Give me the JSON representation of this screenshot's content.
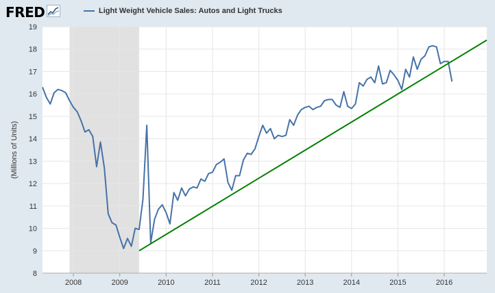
{
  "logo": {
    "text": "FRED",
    "icon": "fred-mini-chart-icon"
  },
  "colors": {
    "background": "#e1e9f0",
    "plot_background": "#ffffff",
    "series": "#4572a7",
    "trend": "#008000",
    "recession": "#e1e1e1",
    "grid": "#e6e6e6"
  },
  "chart_data": {
    "type": "line",
    "title": "",
    "legend": {
      "position": "top-left",
      "entries": [
        "Light Weight Vehicle Sales: Autos and Light Trucks"
      ]
    },
    "xlabel": "",
    "ylabel": "(Millions of Units)",
    "ylim": [
      8,
      19
    ],
    "xlim": [
      "2007-05-01",
      "2016-12-01"
    ],
    "yticks": [
      8,
      9,
      10,
      11,
      12,
      13,
      14,
      15,
      16,
      17,
      18,
      19
    ],
    "xticks": [
      "2008",
      "2009",
      "2010",
      "2011",
      "2012",
      "2013",
      "2014",
      "2015",
      "2016"
    ],
    "grid": true,
    "recession_shading": [
      {
        "start": "2007-12-01",
        "end": "2009-06-01"
      }
    ],
    "series": [
      {
        "name": "Light Weight Vehicle Sales: Autos and Light Trucks",
        "dates": [
          "2007-05",
          "2007-06",
          "2007-07",
          "2007-08",
          "2007-09",
          "2007-10",
          "2007-11",
          "2007-12",
          "2008-01",
          "2008-02",
          "2008-03",
          "2008-04",
          "2008-05",
          "2008-06",
          "2008-07",
          "2008-08",
          "2008-09",
          "2008-10",
          "2008-11",
          "2008-12",
          "2009-01",
          "2009-02",
          "2009-03",
          "2009-04",
          "2009-05",
          "2009-06",
          "2009-07",
          "2009-08",
          "2009-09",
          "2009-10",
          "2009-11",
          "2009-12",
          "2010-01",
          "2010-02",
          "2010-03",
          "2010-04",
          "2010-05",
          "2010-06",
          "2010-07",
          "2010-08",
          "2010-09",
          "2010-10",
          "2010-11",
          "2010-12",
          "2011-01",
          "2011-02",
          "2011-03",
          "2011-04",
          "2011-05",
          "2011-06",
          "2011-07",
          "2011-08",
          "2011-09",
          "2011-10",
          "2011-11",
          "2011-12",
          "2012-01",
          "2012-02",
          "2012-03",
          "2012-04",
          "2012-05",
          "2012-06",
          "2012-07",
          "2012-08",
          "2012-09",
          "2012-10",
          "2012-11",
          "2012-12",
          "2013-01",
          "2013-02",
          "2013-03",
          "2013-04",
          "2013-05",
          "2013-06",
          "2013-07",
          "2013-08",
          "2013-09",
          "2013-10",
          "2013-11",
          "2013-12",
          "2014-01",
          "2014-02",
          "2014-03",
          "2014-04",
          "2014-05",
          "2014-06",
          "2014-07",
          "2014-08",
          "2014-09",
          "2014-10",
          "2014-11",
          "2014-12",
          "2015-01",
          "2015-02",
          "2015-03",
          "2015-04",
          "2015-05",
          "2015-06",
          "2015-07",
          "2015-08",
          "2015-09",
          "2015-10",
          "2015-11",
          "2015-12",
          "2016-01",
          "2016-02",
          "2016-03"
        ],
        "values": [
          16.3,
          15.85,
          15.55,
          16.05,
          16.2,
          16.15,
          16.05,
          15.7,
          15.4,
          15.2,
          14.8,
          14.3,
          14.4,
          14.1,
          12.75,
          13.85,
          12.7,
          10.65,
          10.25,
          10.15,
          9.6,
          9.1,
          9.55,
          9.2,
          10.0,
          9.95,
          11.3,
          14.6,
          9.35,
          10.4,
          10.85,
          11.05,
          10.7,
          10.2,
          11.6,
          11.25,
          11.8,
          11.45,
          11.75,
          11.85,
          11.8,
          12.2,
          12.1,
          12.45,
          12.5,
          12.85,
          12.95,
          13.1,
          12.05,
          11.7,
          12.35,
          12.35,
          13.05,
          13.35,
          13.3,
          13.55,
          14.1,
          14.6,
          14.25,
          14.45,
          14.0,
          14.15,
          14.1,
          14.15,
          14.85,
          14.6,
          15.05,
          15.3,
          15.4,
          15.45,
          15.3,
          15.4,
          15.45,
          15.7,
          15.75,
          15.75,
          15.5,
          15.4,
          16.1,
          15.45,
          15.35,
          15.55,
          16.5,
          16.35,
          16.65,
          16.75,
          16.5,
          17.25,
          16.45,
          16.5,
          17.05,
          16.85,
          16.6,
          16.2,
          17.1,
          16.75,
          17.65,
          17.1,
          17.55,
          17.7,
          18.1,
          18.15,
          18.1,
          17.35,
          17.45,
          17.45,
          16.55
        ]
      },
      {
        "name": "",
        "dates": [
          "2009-06",
          "2016-12"
        ],
        "values": [
          9.0,
          18.4
        ]
      }
    ]
  }
}
